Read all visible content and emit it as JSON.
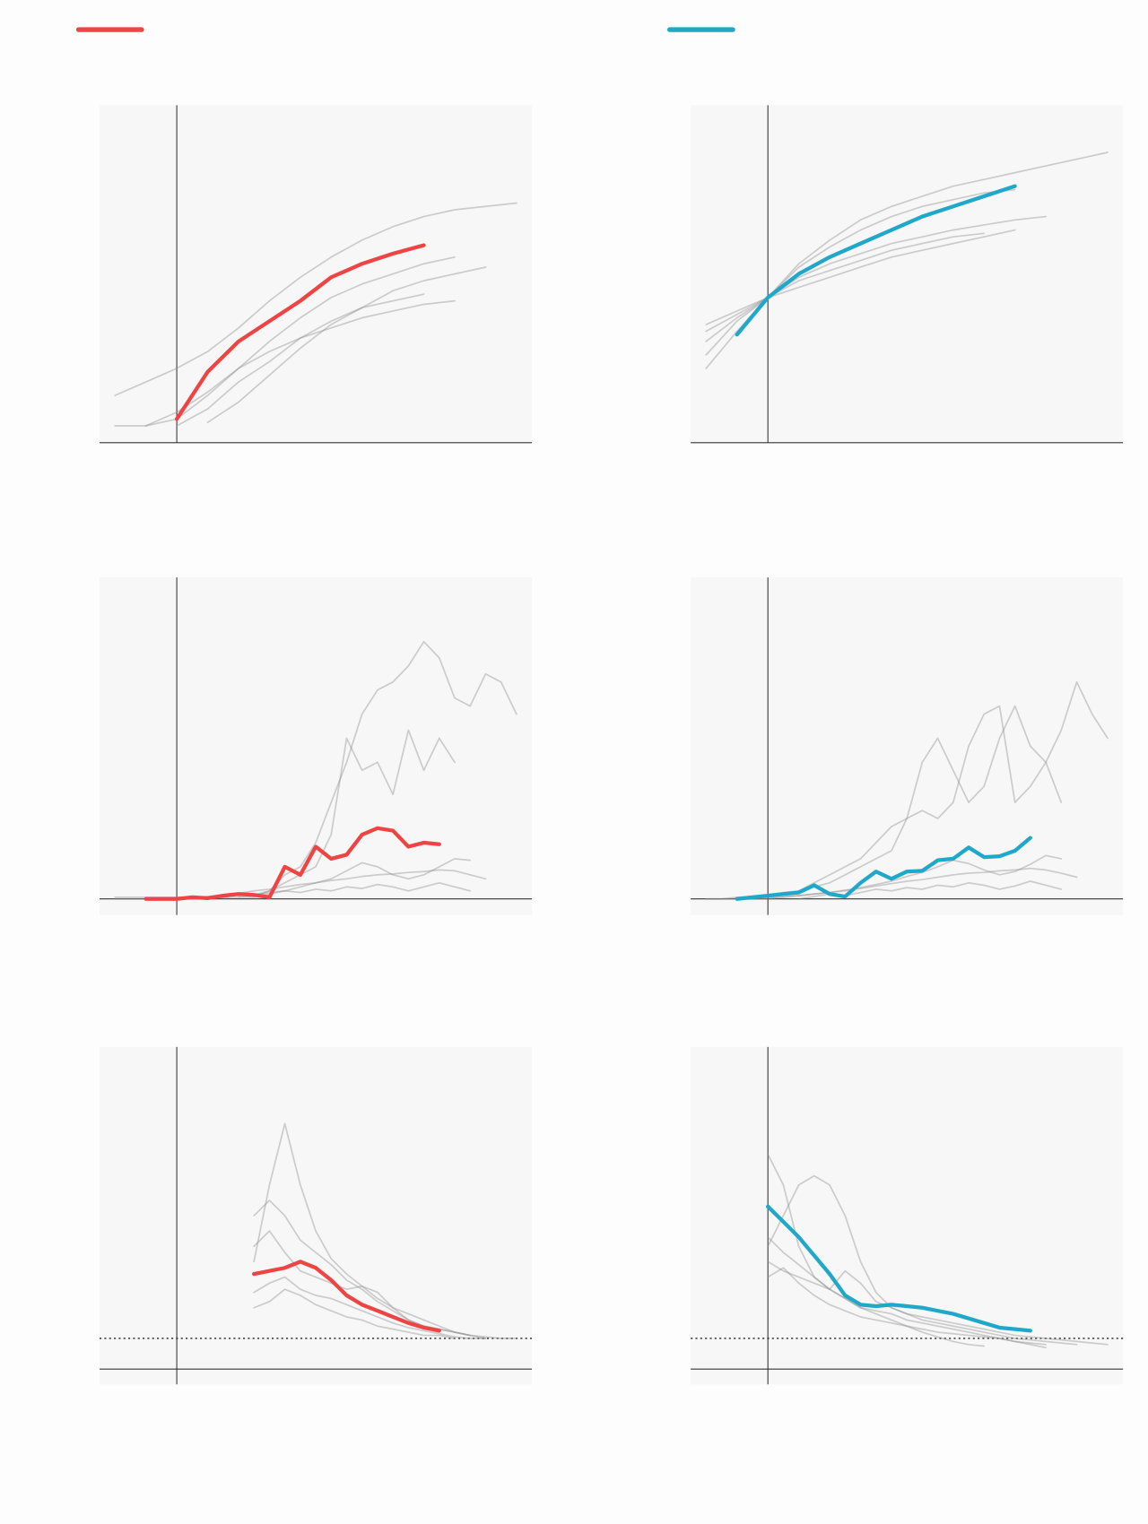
{
  "chart_data": [
    {
      "type": "line",
      "xlim": [
        -10,
        46
      ],
      "ylim": [
        0,
        100
      ],
      "x": [
        -8,
        -4,
        0,
        4,
        8,
        12,
        16,
        20,
        24,
        28,
        32,
        36,
        40,
        44
      ],
      "series": [
        {
          "color": "#ef4444",
          "highlight": true,
          "values": [
            null,
            null,
            7,
            21,
            30,
            36,
            42,
            49,
            53,
            56,
            58.5,
            null,
            null,
            null
          ]
        },
        {
          "color": "#8a8a8a",
          "values": [
            14,
            18,
            22,
            27,
            34,
            42,
            49,
            55,
            60,
            64,
            67,
            69,
            70,
            71
          ]
        },
        {
          "color": "#8a8a8a",
          "values": [
            null,
            5,
            7,
            14,
            22,
            30,
            37,
            43,
            47,
            50,
            53,
            55,
            null,
            null
          ]
        },
        {
          "color": "#8a8a8a",
          "values": [
            null,
            null,
            5,
            10,
            18,
            24,
            31,
            36,
            40,
            42,
            44,
            null,
            null,
            null
          ]
        },
        {
          "color": "#8a8a8a",
          "values": [
            null,
            null,
            null,
            6,
            12,
            20,
            28,
            35,
            40,
            45,
            48,
            50,
            52,
            null
          ]
        },
        {
          "color": "#8a8a8a",
          "values": [
            5,
            5,
            9,
            15,
            22,
            27,
            31,
            34,
            37,
            39,
            41,
            42,
            null,
            null
          ]
        }
      ]
    },
    {
      "type": "line",
      "xlim": [
        -10,
        46
      ],
      "ylim": [
        0,
        100
      ],
      "x": [
        -8,
        -4,
        0,
        4,
        8,
        12,
        16,
        20,
        24,
        28,
        32,
        36,
        40,
        44
      ],
      "series": [
        {
          "color": "#1fa8c9",
          "highlight": true,
          "values": [
            null,
            32,
            43,
            50,
            55,
            59,
            63,
            67,
            70,
            73,
            76,
            null,
            null,
            null
          ]
        },
        {
          "color": "#8a8a8a",
          "values": [
            22,
            33,
            43,
            53,
            60,
            66,
            70,
            73,
            76,
            78,
            80,
            82,
            84,
            86
          ]
        },
        {
          "color": "#8a8a8a",
          "values": [
            30,
            37,
            43,
            49,
            53,
            56,
            59,
            61,
            63,
            64.5,
            66,
            67,
            null,
            null
          ]
        },
        {
          "color": "#8a8a8a",
          "values": [
            33,
            38,
            43,
            48,
            51,
            54,
            57,
            59,
            61,
            62,
            null,
            null,
            null,
            null
          ]
        },
        {
          "color": "#8a8a8a",
          "values": [
            26,
            36,
            43,
            52,
            58,
            63,
            67,
            70,
            72,
            74,
            75,
            null,
            null,
            null
          ]
        },
        {
          "color": "#8a8a8a",
          "values": [
            35,
            39,
            43,
            46,
            49,
            52,
            55,
            57,
            59,
            61,
            63,
            null,
            null,
            null
          ]
        }
      ]
    },
    {
      "type": "line",
      "xlim": [
        -10,
        46
      ],
      "ylim": [
        -2,
        40
      ],
      "x": [
        -8,
        -6,
        -4,
        -2,
        0,
        2,
        4,
        6,
        8,
        10,
        12,
        14,
        16,
        18,
        20,
        22,
        24,
        26,
        28,
        30,
        32,
        34,
        36,
        38,
        40,
        42,
        44
      ],
      "series": [
        {
          "color": "#ef4444",
          "highlight": true,
          "values": [
            null,
            null,
            0,
            0,
            0,
            0.2,
            0.1,
            0.4,
            0.6,
            0.5,
            0.2,
            4,
            3,
            6.5,
            5,
            5.5,
            8,
            8.8,
            8.5,
            6.5,
            7,
            6.8,
            null,
            null,
            null,
            null,
            null
          ]
        },
        {
          "color": "#8a8a8a",
          "values": [
            0.2,
            0.2,
            0.2,
            0.2,
            0.2,
            0.2,
            0.2,
            0.2,
            0.2,
            0.2,
            1,
            3,
            4,
            7,
            12,
            17,
            23,
            26,
            27,
            29,
            32,
            30,
            25,
            24,
            28,
            27,
            23
          ]
        },
        {
          "color": "#8a8a8a",
          "values": [
            null,
            null,
            null,
            null,
            null,
            null,
            null,
            null,
            0.3,
            0.5,
            1,
            2,
            3,
            4,
            8,
            20,
            16,
            17,
            13,
            21,
            16,
            20,
            17,
            null,
            null,
            null,
            null
          ]
        },
        {
          "color": "#8a8a8a",
          "values": [
            null,
            null,
            0,
            0,
            0.1,
            0.2,
            0.3,
            0.5,
            0.7,
            1,
            1.2,
            1.5,
            1.8,
            2,
            2.3,
            2.5,
            2.8,
            3,
            3.1,
            3.3,
            3.4,
            3.6,
            3.5,
            3,
            2.5,
            null,
            null
          ]
        },
        {
          "color": "#8a8a8a",
          "values": [
            0,
            0,
            0,
            0,
            0,
            0.1,
            0.2,
            0.3,
            0.5,
            0.5,
            0.8,
            1,
            1.5,
            2,
            2.5,
            3.5,
            4.5,
            4,
            3,
            2.5,
            3,
            4,
            5,
            4.8,
            null,
            null,
            null
          ]
        },
        {
          "color": "#8a8a8a",
          "values": [
            null,
            null,
            null,
            null,
            null,
            null,
            0,
            0.2,
            0.5,
            0.3,
            0.6,
            1,
            0.8,
            1.2,
            1,
            1.5,
            1.3,
            1.8,
            1.5,
            1,
            1.5,
            2,
            1.5,
            1,
            null,
            null,
            null
          ]
        }
      ]
    },
    {
      "type": "line",
      "xlim": [
        -10,
        46
      ],
      "ylim": [
        -2,
        40
      ],
      "x": [
        -8,
        -6,
        -4,
        -2,
        0,
        2,
        4,
        6,
        8,
        10,
        12,
        14,
        16,
        18,
        20,
        22,
        24,
        26,
        28,
        30,
        32,
        34,
        36,
        38,
        40,
        42,
        44
      ],
      "series": [
        {
          "color": "#1fa8c9",
          "highlight": true,
          "values": [
            null,
            null,
            0,
            0.2,
            0.4,
            0.6,
            0.8,
            1.7,
            0.6,
            0.3,
            2,
            3.4,
            2.5,
            3.4,
            3.5,
            4.8,
            5,
            6.4,
            5.2,
            5.3,
            6,
            7.6,
            null,
            null,
            null,
            null,
            null
          ]
        },
        {
          "color": "#8a8a8a",
          "values": [
            0,
            0,
            0.2,
            0.3,
            0.5,
            0.8,
            1,
            1.5,
            2,
            3,
            4,
            5,
            6,
            10,
            17,
            20,
            16,
            12,
            14,
            20,
            24,
            19,
            17,
            21,
            27,
            23,
            20
          ]
        },
        {
          "color": "#8a8a8a",
          "values": [
            null,
            null,
            null,
            null,
            null,
            null,
            1,
            2,
            3,
            4,
            5,
            7,
            9,
            10,
            11,
            10,
            12,
            19,
            23,
            24,
            12,
            14,
            17,
            12,
            null,
            null,
            null
          ]
        },
        {
          "color": "#8a8a8a",
          "values": [
            null,
            null,
            0,
            0,
            0.1,
            0.3,
            0.4,
            0.6,
            0.8,
            1.1,
            1.3,
            1.6,
            1.9,
            2.2,
            2.4,
            2.7,
            3,
            3.2,
            3.3,
            3.5,
            3.6,
            3.8,
            3.6,
            3.2,
            2.7,
            null,
            null
          ]
        },
        {
          "color": "#8a8a8a",
          "values": [
            0,
            0,
            0,
            0,
            0,
            0.2,
            0.4,
            0.6,
            0.8,
            1,
            1.4,
            1.8,
            2.2,
            2.8,
            3.3,
            4,
            4.8,
            4.4,
            3.6,
            3,
            3.4,
            4.3,
            5.4,
            5,
            null,
            null,
            null
          ]
        },
        {
          "color": "#8a8a8a",
          "values": [
            null,
            null,
            null,
            null,
            null,
            null,
            0,
            0.3,
            0.6,
            0.4,
            0.8,
            1.2,
            1,
            1.4,
            1.2,
            1.7,
            1.5,
            2,
            1.7,
            1.2,
            1.6,
            2.2,
            1.7,
            1.2,
            null,
            null,
            null
          ]
        }
      ]
    },
    {
      "type": "line",
      "xlim": [
        -10,
        46
      ],
      "ylim": [
        -0.5,
        10.5
      ],
      "hline": 1,
      "x": [
        10,
        12,
        14,
        16,
        18,
        20,
        22,
        24,
        26,
        28,
        30,
        32,
        34,
        36,
        38,
        40,
        42,
        44
      ],
      "series": [
        {
          "color": "#ef4444",
          "highlight": true,
          "values": [
            3.1,
            3.2,
            3.3,
            3.5,
            3.3,
            2.9,
            2.4,
            2.1,
            1.9,
            1.7,
            1.5,
            1.35,
            1.25,
            null,
            null,
            null,
            null,
            null
          ]
        },
        {
          "color": "#8a8a8a",
          "values": [
            3.5,
            6,
            8,
            6,
            4.5,
            3.6,
            3.1,
            2.7,
            2.3,
            2,
            1.8,
            1.6,
            1.4,
            1.2,
            1.1,
            1.0,
            null,
            null
          ]
        },
        {
          "color": "#8a8a8a",
          "values": [
            4,
            4.5,
            3.8,
            3.2,
            3,
            2.8,
            2.6,
            2.7,
            2.5,
            2,
            1.6,
            1.4,
            1.3,
            1.2,
            1.1,
            null,
            null,
            null
          ]
        },
        {
          "color": "#8a8a8a",
          "values": [
            2.5,
            2.8,
            3,
            2.6,
            2.4,
            2.3,
            2.1,
            1.9,
            1.7,
            1.5,
            1.35,
            1.25,
            1.15,
            1.05,
            1,
            1,
            null,
            null
          ]
        },
        {
          "color": "#8a8a8a",
          "values": [
            2,
            2.2,
            2.6,
            2.4,
            2.1,
            1.9,
            1.7,
            1.6,
            1.4,
            1.3,
            1.2,
            1.1,
            1.1,
            1,
            null,
            null,
            null,
            null
          ]
        },
        {
          "color": "#8a8a8a",
          "values": [
            5,
            5.5,
            5,
            4.2,
            3.8,
            3.4,
            2.9,
            2.6,
            2.2,
            1.9,
            1.6,
            1.4,
            1.3,
            1.2,
            1.1,
            1.05,
            1,
            1
          ]
        }
      ]
    },
    {
      "type": "line",
      "xlim": [
        -10,
        46
      ],
      "ylim": [
        -0.5,
        10.5
      ],
      "hline": 1,
      "x": [
        0,
        2,
        4,
        6,
        8,
        10,
        12,
        14,
        16,
        18,
        20,
        22,
        24,
        26,
        28,
        30,
        32,
        34,
        36,
        38,
        40,
        42,
        44
      ],
      "series": [
        {
          "color": "#1fa8c9",
          "highlight": true,
          "values": [
            5.3,
            4.8,
            4.3,
            3.7,
            3.1,
            2.4,
            2.1,
            2.05,
            2.1,
            2.05,
            2,
            1.9,
            1.8,
            1.65,
            1.5,
            1.35,
            1.3,
            1.25,
            null,
            null,
            null,
            null,
            null
          ]
        },
        {
          "color": "#8a8a8a",
          "values": [
            7,
            6,
            4,
            3,
            2.6,
            2.3,
            2,
            1.9,
            1.8,
            1.6,
            1.5,
            1.4,
            1.3,
            1.2,
            1.1,
            1,
            0.9,
            0.8,
            0.7,
            null,
            null,
            null,
            null
          ]
        },
        {
          "color": "#8a8a8a",
          "values": [
            4,
            5,
            6,
            6.3,
            6,
            5,
            3.5,
            2.5,
            2,
            1.8,
            1.7,
            1.6,
            1.5,
            1.4,
            1.3,
            1.2,
            1.1,
            1.05,
            1,
            0.95,
            0.9,
            0.85,
            0.8
          ]
        },
        {
          "color": "#8a8a8a",
          "values": [
            4.3,
            3.8,
            3.4,
            3,
            2.6,
            2.3,
            2,
            1.8,
            1.6,
            1.4,
            1.2,
            1.05,
            0.9,
            0.8,
            0.75,
            null,
            null,
            null,
            null,
            null,
            null,
            null,
            null
          ]
        },
        {
          "color": "#8a8a8a",
          "values": [
            3.5,
            3.2,
            3,
            2.8,
            2.6,
            3.2,
            2.8,
            2.2,
            2,
            1.8,
            1.6,
            1.5,
            1.4,
            1.3,
            1.2,
            1.1,
            1,
            0.95,
            0.9,
            0.85,
            0.8,
            null,
            null
          ]
        },
        {
          "color": "#8a8a8a",
          "values": [
            3,
            3.3,
            2.8,
            2.4,
            2.1,
            1.9,
            1.7,
            1.6,
            1.5,
            1.4,
            1.3,
            1.2,
            1.15,
            1.1,
            1.05,
            1,
            0.9,
            0.85,
            0.8,
            null,
            null,
            null,
            null
          ]
        }
      ]
    }
  ]
}
